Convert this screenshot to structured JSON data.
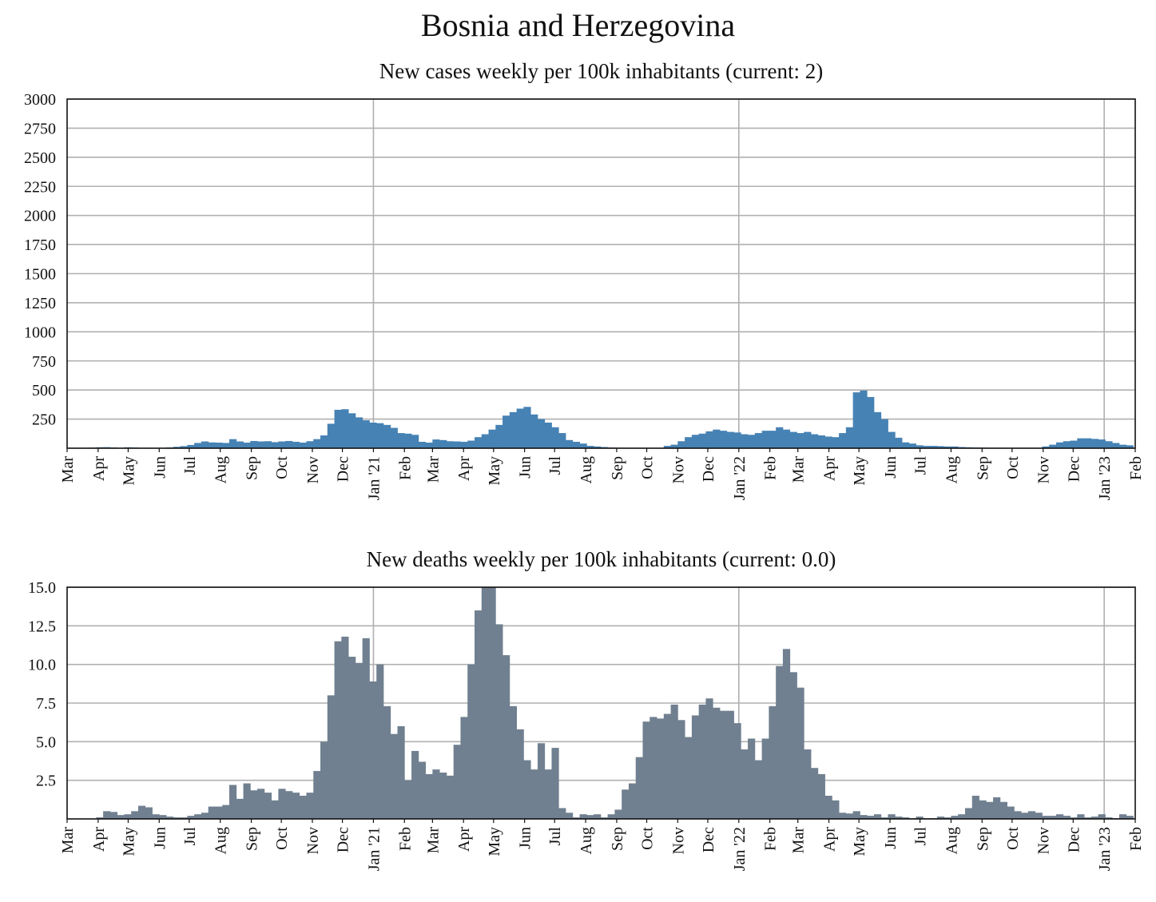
{
  "page_title": "Bosnia and Herzegovina",
  "chart_data": [
    {
      "type": "bar",
      "title": "New cases weekly per 100k inhabitants (current: 2)",
      "color": "#4682b4",
      "ylim": [
        0,
        3000
      ],
      "yticks": [
        "250",
        "500",
        "750",
        "1000",
        "1250",
        "1500",
        "1750",
        "2000",
        "2250",
        "2500",
        "2750",
        "3000"
      ],
      "grid": true,
      "x_range": [
        "2020-03-01",
        "2023-02-01"
      ],
      "xtick_labels": [
        "Mar",
        "Apr",
        "May",
        "Jun",
        "Jul",
        "Aug",
        "Sep",
        "Oct",
        "Nov",
        "Dec",
        "Jan '21",
        "Feb",
        "Mar",
        "Apr",
        "May",
        "Jun",
        "Jul",
        "Aug",
        "Sep",
        "Oct",
        "Nov",
        "Dec",
        "Jan '22",
        "Feb",
        "Mar",
        "Apr",
        "May",
        "Jun",
        "Jul",
        "Aug",
        "Sep",
        "Oct",
        "Nov",
        "Dec",
        "Jan '23",
        "Feb"
      ],
      "week_start": "2020-03-09",
      "values": [
        1,
        2,
        5,
        8,
        9,
        6,
        3,
        8,
        6,
        2,
        1,
        2,
        3,
        7,
        12,
        18,
        28,
        45,
        58,
        50,
        48,
        45,
        78,
        58,
        48,
        62,
        58,
        60,
        52,
        58,
        62,
        55,
        48,
        60,
        78,
        110,
        210,
        330,
        335,
        300,
        265,
        240,
        220,
        215,
        200,
        175,
        130,
        125,
        115,
        55,
        48,
        75,
        70,
        60,
        58,
        55,
        65,
        95,
        120,
        160,
        200,
        280,
        310,
        340,
        355,
        290,
        250,
        220,
        180,
        130,
        70,
        55,
        40,
        20,
        15,
        10,
        6,
        4,
        3,
        2,
        2,
        2,
        2,
        3,
        20,
        30,
        60,
        95,
        115,
        125,
        145,
        160,
        150,
        140,
        135,
        120,
        115,
        130,
        150,
        150,
        180,
        160,
        140,
        130,
        140,
        120,
        110,
        100,
        95,
        130,
        180,
        480,
        495,
        440,
        310,
        250,
        140,
        90,
        50,
        40,
        25,
        20,
        20,
        18,
        15,
        15,
        10,
        8,
        6,
        5,
        4,
        3,
        2,
        2,
        2,
        2,
        2,
        2,
        15,
        30,
        50,
        60,
        65,
        85,
        85,
        80,
        75,
        60,
        45,
        30,
        25,
        20,
        15,
        15,
        12,
        10,
        8,
        6,
        5,
        4,
        3,
        3,
        3,
        3,
        3,
        2,
        2,
        2,
        2,
        2,
        2,
        2,
        2,
        2,
        2,
        2,
        2
      ]
    },
    {
      "type": "bar",
      "title": "New deaths weekly per 100k inhabitants (current: 0.0)",
      "color": "#708090",
      "ylim": [
        0,
        15
      ],
      "yticks": [
        "2.5",
        "5.0",
        "7.5",
        "10.0",
        "12.5",
        "15.0"
      ],
      "grid": true,
      "x_range": [
        "2020-03-01",
        "2023-02-01"
      ],
      "xtick_labels": [
        "Mar",
        "Apr",
        "May",
        "Jun",
        "Jul",
        "Aug",
        "Sep",
        "Oct",
        "Nov",
        "Dec",
        "Jan '21",
        "Feb",
        "Mar",
        "Apr",
        "May",
        "Jun",
        "Jul",
        "Aug",
        "Sep",
        "Oct",
        "Nov",
        "Dec",
        "Jan '22",
        "Feb",
        "Mar",
        "Apr",
        "May",
        "Jun",
        "Jul",
        "Aug",
        "Sep",
        "Oct",
        "Nov",
        "Dec",
        "Jan '23",
        "Feb"
      ],
      "week_start": "2020-03-09",
      "values": [
        0.0,
        0.0,
        0.0,
        0.1,
        0.5,
        0.45,
        0.25,
        0.3,
        0.5,
        0.85,
        0.75,
        0.3,
        0.25,
        0.15,
        0.1,
        0.1,
        0.2,
        0.3,
        0.4,
        0.8,
        0.8,
        0.9,
        2.2,
        1.3,
        2.3,
        1.85,
        1.95,
        1.7,
        1.2,
        1.95,
        1.8,
        1.7,
        1.5,
        1.7,
        3.1,
        5.0,
        8.0,
        11.5,
        11.8,
        10.5,
        10.1,
        11.7,
        8.9,
        10.0,
        7.3,
        5.5,
        6.0,
        2.5,
        4.4,
        3.7,
        2.9,
        3.2,
        3.0,
        2.8,
        4.8,
        6.6,
        10.0,
        13.5,
        15.0,
        15.0,
        12.6,
        10.6,
        7.3,
        5.8,
        3.8,
        3.2,
        4.9,
        3.2,
        4.6,
        0.7,
        0.4,
        0.1,
        0.3,
        0.25,
        0.3,
        0.1,
        0.3,
        0.6,
        1.9,
        2.3,
        4.0,
        6.3,
        6.6,
        6.5,
        6.8,
        7.4,
        6.4,
        5.3,
        6.7,
        7.4,
        7.8,
        7.2,
        7.0,
        7.0,
        6.2,
        4.5,
        5.2,
        3.8,
        5.2,
        7.3,
        9.9,
        11.0,
        9.5,
        8.5,
        4.5,
        3.3,
        2.9,
        1.5,
        1.2,
        0.4,
        0.35,
        0.5,
        0.25,
        0.2,
        0.3,
        0.1,
        0.3,
        0.15,
        0.1,
        0.05,
        0.15,
        0.05,
        0.05,
        0.15,
        0.1,
        0.2,
        0.3,
        0.7,
        1.5,
        1.2,
        1.1,
        1.4,
        1.1,
        0.8,
        0.5,
        0.4,
        0.5,
        0.4,
        0.2,
        0.2,
        0.3,
        0.2,
        0.1,
        0.3,
        0.1,
        0.15,
        0.3,
        0.1,
        0.05,
        0.3,
        0.2,
        0.1,
        0.05,
        0.15,
        0.2,
        0.2,
        0.2,
        0.15,
        0.1
      ]
    }
  ]
}
